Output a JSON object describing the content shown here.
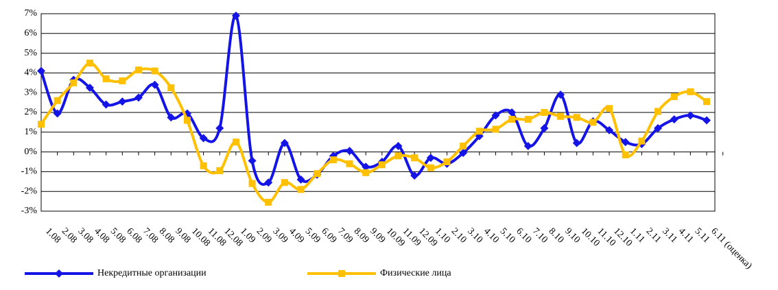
{
  "chart_data": {
    "type": "line",
    "categories": [
      "1.08",
      "2.08",
      "3.08",
      "4.08",
      "5.08",
      "6.08",
      "7.08",
      "8.08",
      "9.08",
      "10.08",
      "11.08",
      "12.08",
      "1.09",
      "2.09",
      "3.09",
      "4.09",
      "5.09",
      "6.09",
      "7.09",
      "8.09",
      "9.09",
      "10.09",
      "11.09",
      "12.09",
      "1.10",
      "2.10",
      "3.10",
      "4.10",
      "5.10",
      "6.10",
      "7.10",
      "8.10",
      "9.10",
      "10.10",
      "11.10",
      "12.10",
      "1.11",
      "2.11",
      "3.11",
      "4.11",
      "5.11",
      "6.11  (оценка)"
    ],
    "series": [
      {
        "name": "Некредитные организации",
        "color": "#1414e6",
        "marker": "diamond",
        "values": [
          4.1,
          1.95,
          3.65,
          3.25,
          2.4,
          2.55,
          2.75,
          3.4,
          1.75,
          1.95,
          0.7,
          1.2,
          6.9,
          -0.45,
          -1.55,
          0.45,
          -1.4,
          -1.15,
          -0.2,
          0.05,
          -0.75,
          -0.5,
          0.3,
          -1.2,
          -0.3,
          -0.6,
          -0.05,
          0.8,
          1.85,
          2.0,
          0.3,
          1.2,
          2.9,
          0.45,
          1.55,
          1.1,
          0.5,
          0.4,
          1.2,
          1.65,
          1.85,
          1.6
        ]
      },
      {
        "name": "Физические лица",
        "color": "#ffc000",
        "marker": "square",
        "values": [
          1.4,
          2.6,
          3.5,
          4.5,
          3.7,
          3.6,
          4.15,
          4.1,
          3.25,
          1.6,
          -0.7,
          -0.95,
          0.5,
          -1.6,
          -2.55,
          -1.55,
          -1.9,
          -1.1,
          -0.4,
          -0.6,
          -1.05,
          -0.65,
          -0.2,
          -0.3,
          -0.8,
          -0.5,
          0.3,
          1.05,
          1.15,
          1.65,
          1.65,
          2.0,
          1.8,
          1.75,
          1.5,
          2.2,
          -0.15,
          0.55,
          2.05,
          2.8,
          3.05,
          2.55
        ]
      }
    ],
    "ylim": [
      -3,
      7
    ],
    "yticks": [
      {
        "value": -3,
        "label": "-3%"
      },
      {
        "value": -2,
        "label": "-2%"
      },
      {
        "value": -1,
        "label": "-1%"
      },
      {
        "value": 0,
        "label": "0%"
      },
      {
        "value": 1,
        "label": "1%"
      },
      {
        "value": 2,
        "label": "2%"
      },
      {
        "value": 3,
        "label": "3%"
      },
      {
        "value": 4,
        "label": "4%"
      },
      {
        "value": 5,
        "label": "5%"
      },
      {
        "value": 6,
        "label": "6%"
      },
      {
        "value": 7,
        "label": "7%"
      }
    ],
    "grid": true,
    "legend": "bottom"
  }
}
